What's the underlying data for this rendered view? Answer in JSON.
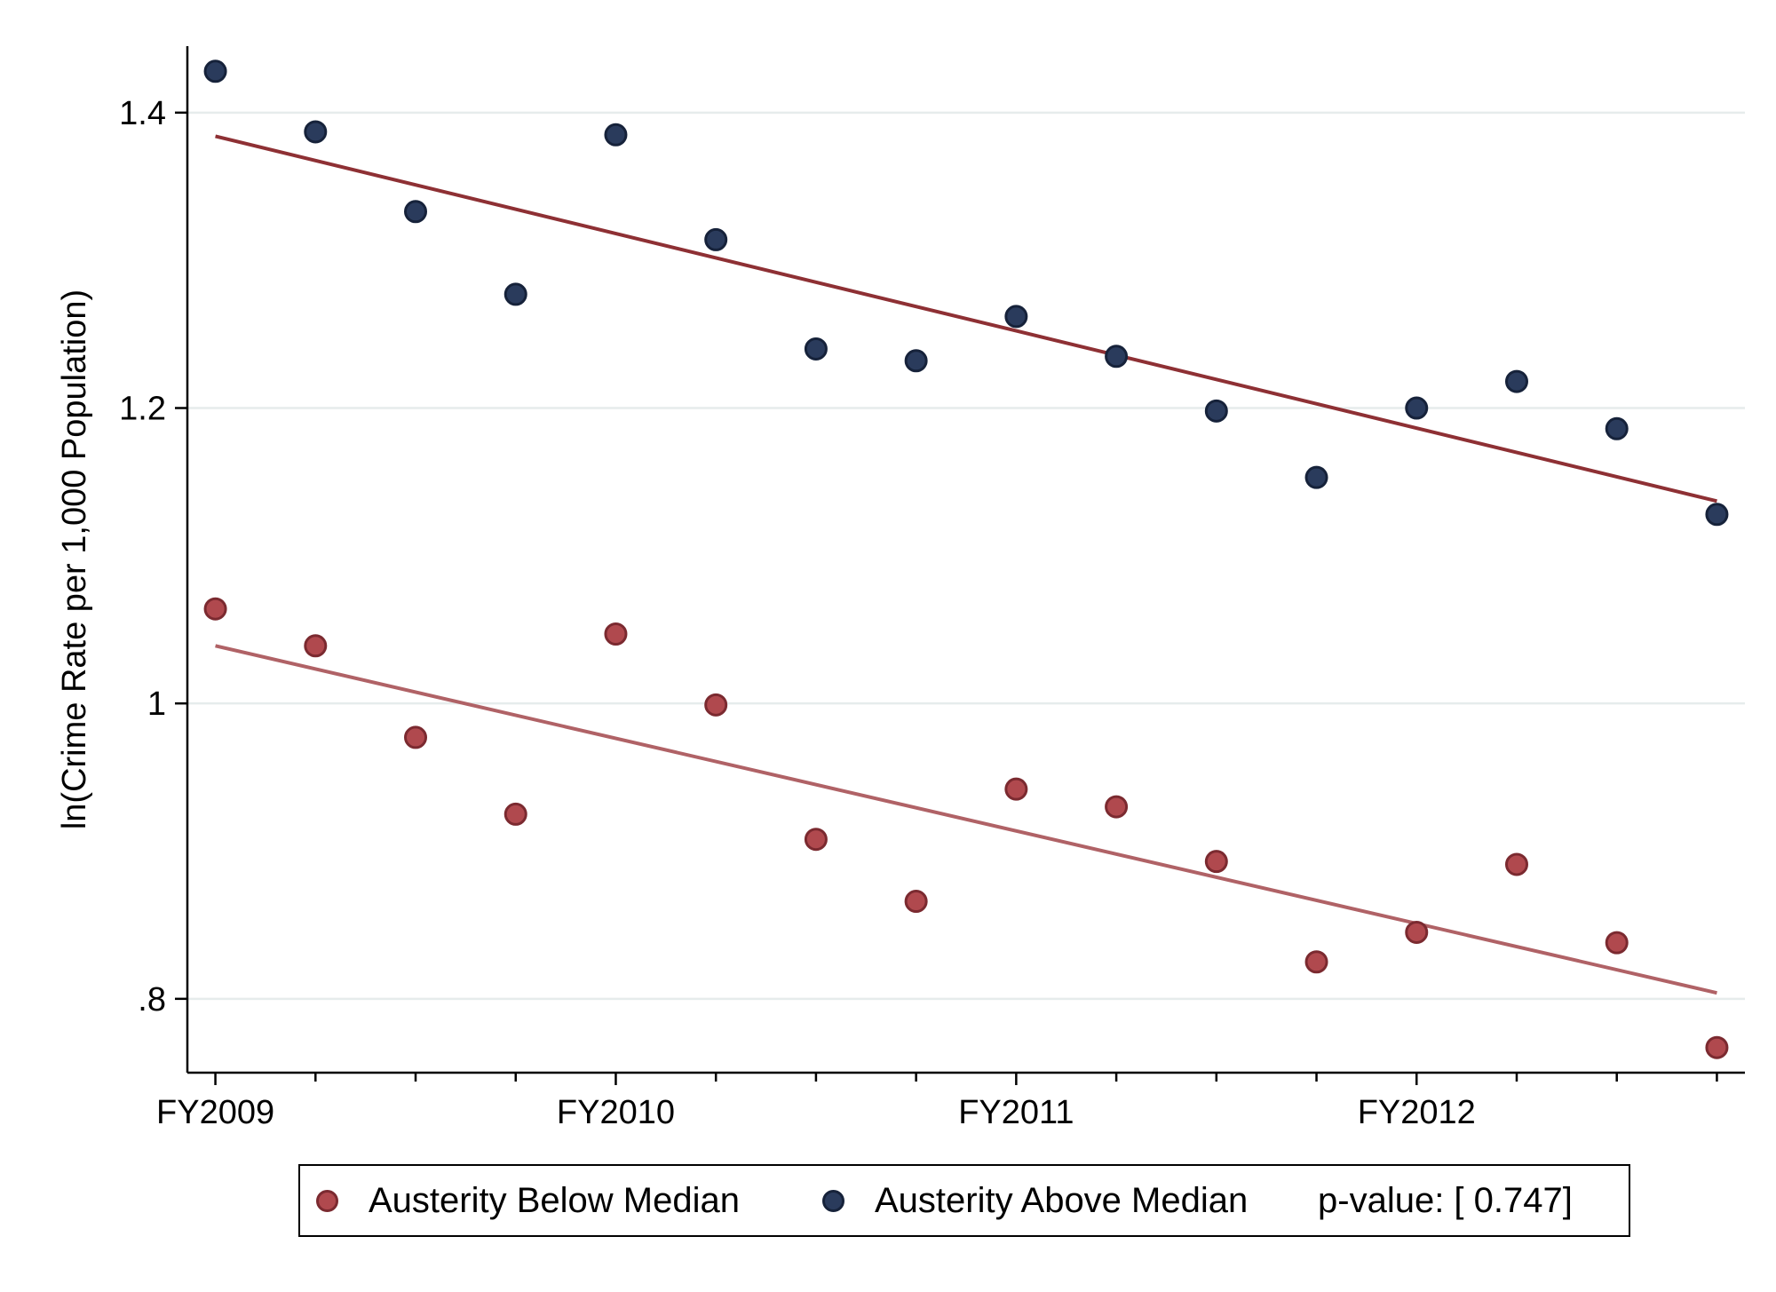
{
  "chart_data": {
    "type": "scatter",
    "title": "",
    "xlabel": "",
    "ylabel": "ln(Crime Rate per 1,000 Population)",
    "ylim": [
      0.75,
      1.445
    ],
    "yticks": [
      {
        "value": 0.8,
        "label": ".8"
      },
      {
        "value": 1.0,
        "label": "1"
      },
      {
        "value": 1.2,
        "label": "1.2"
      },
      {
        "value": 1.4,
        "label": "1.4"
      }
    ],
    "xlim": [
      -0.07,
      3.82
    ],
    "xticks": [
      {
        "value": 0,
        "label": "FY2009"
      },
      {
        "value": 1,
        "label": "FY2010"
      },
      {
        "value": 2,
        "label": "FY2011"
      },
      {
        "value": 3,
        "label": "FY2012"
      }
    ],
    "minor_xticks": [
      0.25,
      0.5,
      0.75,
      1.25,
      1.5,
      1.75,
      2.25,
      2.5,
      2.75,
      3.25,
      3.5,
      3.75
    ],
    "grid": "horizontal",
    "series": [
      {
        "name": "Austerity Below Median",
        "color": "#b0494e",
        "edge_color": "#7b2a30",
        "line_color": "#b06266",
        "x": [
          0,
          0.25,
          0.5,
          0.75,
          1,
          1.25,
          1.5,
          1.75,
          2,
          2.25,
          2.5,
          2.75,
          3,
          3.25,
          3.5,
          3.75
        ],
        "y": [
          1.064,
          1.039,
          0.977,
          0.925,
          1.047,
          0.999,
          0.908,
          0.866,
          0.942,
          0.93,
          0.893,
          0.825,
          0.845,
          0.891,
          0.838,
          0.767
        ],
        "fit": {
          "x": [
            0,
            3.75
          ],
          "y": [
            1.039,
            0.804
          ]
        }
      },
      {
        "name": "Austerity Above Median",
        "color": "#2a3b5c",
        "edge_color": "#16223a",
        "line_color": "#8e3034",
        "x": [
          0,
          0.25,
          0.5,
          0.75,
          1,
          1.25,
          1.5,
          1.75,
          2,
          2.25,
          2.5,
          2.75,
          3,
          3.25,
          3.5,
          3.75
        ],
        "y": [
          1.428,
          1.387,
          1.333,
          1.277,
          1.385,
          1.314,
          1.24,
          1.232,
          1.262,
          1.235,
          1.198,
          1.153,
          1.2,
          1.218,
          1.186,
          1.128
        ],
        "fit": {
          "x": [
            0,
            3.75
          ],
          "y": [
            1.384,
            1.137
          ]
        }
      }
    ],
    "legend": {
      "position": "bottom",
      "items": [
        "Austerity Below Median",
        "Austerity Above Median"
      ],
      "note": "p-value: [ 0.747]"
    }
  }
}
